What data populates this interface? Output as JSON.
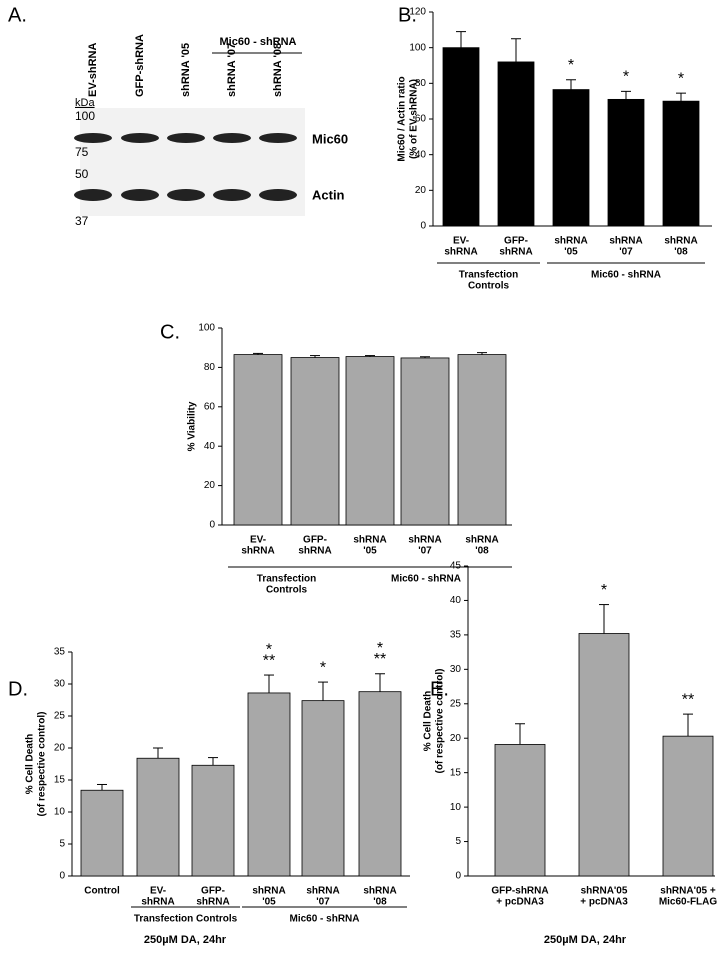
{
  "blot": {
    "label": "A.",
    "lanes": [
      "EV-shRNA",
      "GFP-shRNA",
      "shRNA '05",
      "shRNA '07",
      "shRNA '08"
    ],
    "group": "Mic60 - shRNA",
    "unit": "kDa",
    "markers": [
      100,
      75,
      50,
      37
    ],
    "bands": [
      "Mic60",
      "Actin"
    ]
  },
  "chart_data": [
    {
      "type": "bar",
      "label": "B.",
      "ylabel": [
        "Mic60 / Actin ratio",
        "(% of EV-shRNA)"
      ],
      "categories": [
        [
          "EV-",
          "shRNA"
        ],
        [
          "GFP-",
          "shRNA"
        ],
        [
          "shRNA",
          "'05"
        ],
        [
          "shRNA",
          "'07"
        ],
        [
          "shRNA",
          "'08"
        ]
      ],
      "values": [
        100,
        92,
        76.5,
        71,
        70
      ],
      "errors": [
        9,
        13,
        5.5,
        4.5,
        4.5
      ],
      "color": "#000000",
      "annotations": [
        null,
        null,
        [
          "*"
        ],
        [
          "*"
        ],
        [
          "*"
        ]
      ],
      "groups": [
        {
          "label": [
            "Transfection",
            "Controls"
          ],
          "start": 0,
          "end": 1
        },
        {
          "label": [
            "Mic60 - shRNA"
          ],
          "start": 2,
          "end": 4
        }
      ],
      "ylim": [
        0,
        120
      ],
      "yticks": [
        0,
        20,
        40,
        60,
        80,
        100,
        120
      ]
    },
    {
      "type": "bar",
      "label": "C.",
      "ylabel": [
        "% Viability"
      ],
      "categories": [
        [
          "EV-",
          "shRNA"
        ],
        [
          "GFP-",
          "shRNA"
        ],
        [
          "shRNA",
          "'05"
        ],
        [
          "shRNA",
          "'07"
        ],
        [
          "shRNA",
          "'08"
        ]
      ],
      "values": [
        86.5,
        85,
        85.5,
        84.8,
        86.5
      ],
      "errors": [
        0.6,
        1,
        0.5,
        0.6,
        1
      ],
      "color": "#a8a8a8",
      "groups": [
        {
          "label": [
            "Transfection",
            "Controls"
          ],
          "start": 0,
          "end": 1
        },
        {
          "label": [
            "Mic60 - shRNA"
          ],
          "start": 2,
          "end": 4
        }
      ],
      "ylim": [
        0,
        100
      ],
      "yticks": [
        0,
        20,
        40,
        60,
        80,
        100
      ]
    },
    {
      "type": "bar",
      "label": "D.",
      "ylabel": [
        "% Cell Death",
        "(of respective control)"
      ],
      "xlabel": "250µM DA, 24hr",
      "categories": [
        [
          "Control"
        ],
        [
          "EV-",
          "shRNA"
        ],
        [
          "GFP-",
          "shRNA"
        ],
        [
          "shRNA",
          "'05"
        ],
        [
          "shRNA",
          "'07"
        ],
        [
          "shRNA",
          "'08"
        ]
      ],
      "values": [
        13.4,
        18.4,
        17.3,
        28.6,
        27.4,
        28.8
      ],
      "errors": [
        0.9,
        1.6,
        1.2,
        2.8,
        2.9,
        2.8
      ],
      "color": "#a8a8a8",
      "annotations": [
        null,
        null,
        null,
        [
          "*",
          "**"
        ],
        [
          "*"
        ],
        [
          "*",
          "**"
        ]
      ],
      "groups": [
        {
          "label": [
            "Transfection Controls"
          ],
          "start": 1,
          "end": 2
        },
        {
          "label": [
            "Mic60 - shRNA"
          ],
          "start": 3,
          "end": 5
        }
      ],
      "ylim": [
        0,
        35
      ],
      "yticks": [
        0,
        5,
        10,
        15,
        20,
        25,
        30,
        35
      ]
    },
    {
      "type": "bar",
      "label": "E.",
      "ylabel": [
        "% Cell Death",
        "(of respective control)"
      ],
      "xlabel": "250µM DA, 24hr",
      "categories": [
        [
          "GFP-shRNA",
          "+ pcDNA3"
        ],
        [
          "shRNA'05",
          "+ pcDNA3"
        ],
        [
          "shRNA'05 +",
          "Mic60-FLAG"
        ]
      ],
      "values": [
        19.1,
        35.2,
        20.3
      ],
      "errors": [
        3,
        4.2,
        3.2
      ],
      "color": "#a8a8a8",
      "annotations": [
        null,
        [
          "*"
        ],
        [
          "**"
        ]
      ],
      "ylim": [
        0,
        45
      ],
      "yticks": [
        0,
        5,
        10,
        15,
        20,
        25,
        30,
        35,
        40,
        45
      ]
    }
  ]
}
